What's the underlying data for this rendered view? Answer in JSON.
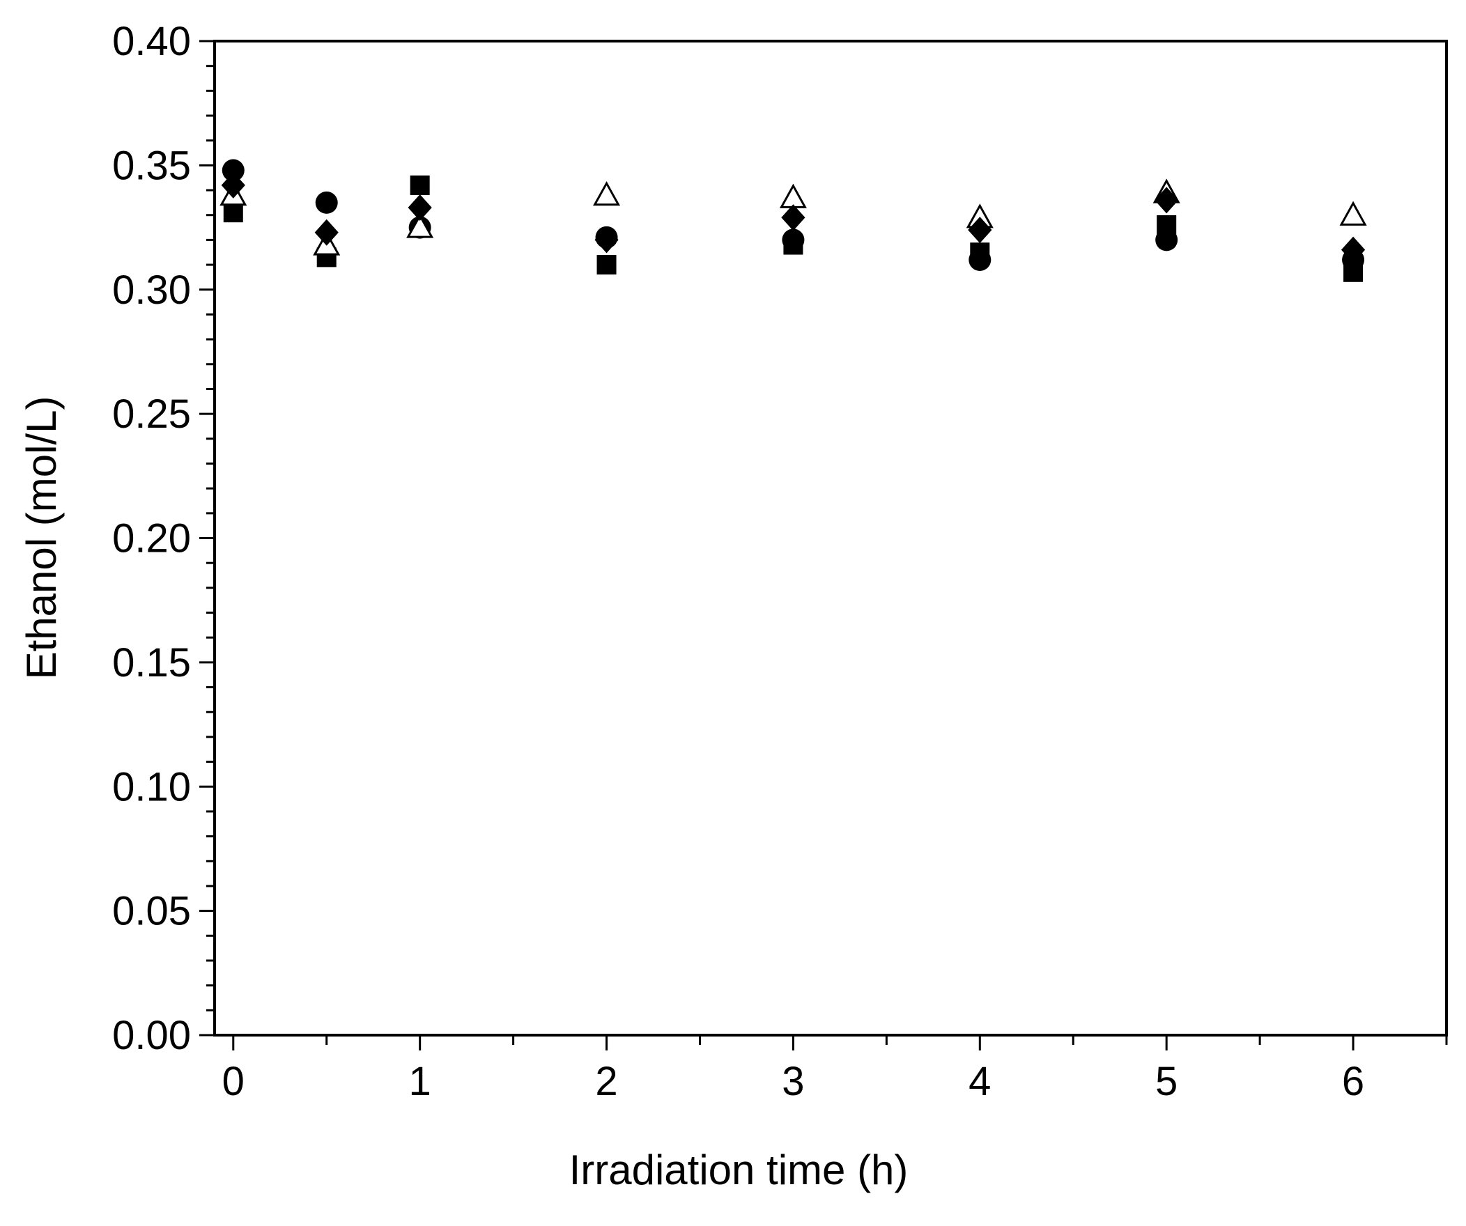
{
  "chart_data": {
    "type": "scatter",
    "title": "",
    "xlabel": "Irradiation time (h)",
    "ylabel": "Ethanol (mol/L)",
    "xlim": [
      -0.1,
      6.5
    ],
    "ylim": [
      0.0,
      0.4
    ],
    "x_ticks": [
      "0",
      "1",
      "2",
      "3",
      "4",
      "5",
      "6"
    ],
    "y_ticks": [
      "0.00",
      "0.05",
      "0.10",
      "0.15",
      "0.20",
      "0.25",
      "0.30",
      "0.35",
      "0.40"
    ],
    "grid": false,
    "legend": "none",
    "series": [
      {
        "marker": "square",
        "filled": true,
        "color": "#000000",
        "x": [
          0,
          0.5,
          1,
          2,
          3,
          4,
          5,
          6
        ],
        "y": [
          0.331,
          0.313,
          0.342,
          0.31,
          0.318,
          0.315,
          0.326,
          0.307
        ]
      },
      {
        "marker": "circle",
        "filled": true,
        "color": "#000000",
        "x": [
          0,
          0.5,
          1,
          2,
          3,
          4,
          5,
          6
        ],
        "y": [
          0.348,
          0.335,
          0.325,
          0.321,
          0.32,
          0.312,
          0.32,
          0.312
        ]
      },
      {
        "marker": "triangle",
        "filled": false,
        "color": "#000000",
        "x": [
          0,
          0.5,
          1,
          2,
          3,
          4,
          5,
          6
        ],
        "y": [
          0.338,
          0.318,
          0.325,
          0.338,
          0.337,
          0.329,
          0.339,
          0.33
        ]
      },
      {
        "marker": "diamond",
        "filled": true,
        "color": "#000000",
        "x": [
          0,
          0.5,
          1,
          2,
          3,
          4,
          5,
          6
        ],
        "y": [
          0.342,
          0.323,
          0.333,
          0.32,
          0.329,
          0.324,
          0.336,
          0.316
        ]
      }
    ]
  }
}
